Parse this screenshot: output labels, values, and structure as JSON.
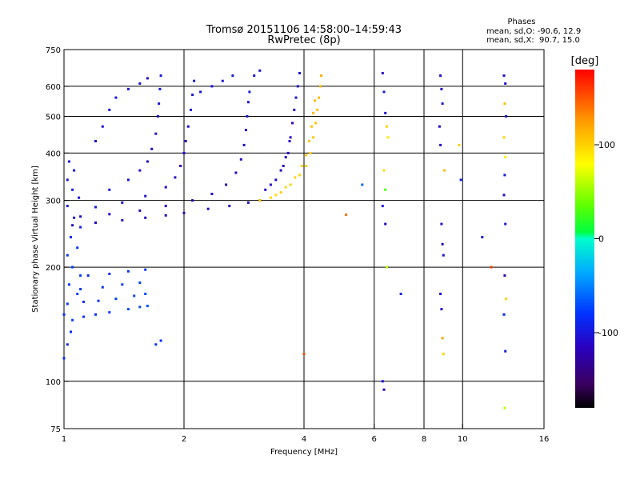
{
  "chart_data": {
    "type": "scatter",
    "title": "Tromsø 20151106 14:58:00–14:59:43",
    "subtitle": "RwPretec (8p)",
    "stats": {
      "heading": "Phases",
      "line_o": "mean, sd,O: -90.6, 12.9",
      "line_x": "mean, sd,X:  90.7, 15.0"
    },
    "xlabel": "Frequency [MHz]",
    "ylabel": "Stationary phase Virtual Height [km]",
    "xscale": "log",
    "yscale": "log",
    "xlim": [
      1,
      16
    ],
    "ylim": [
      75,
      750
    ],
    "xticks": [
      1,
      2,
      4,
      6,
      8,
      10,
      16
    ],
    "yticks": [
      75,
      100,
      200,
      300,
      400,
      500,
      600,
      750
    ],
    "grid": true,
    "colorbar": {
      "label": "[deg]",
      "min": -180,
      "max": 180,
      "ticks": [
        100,
        0,
        -100
      ]
    },
    "series": [
      {
        "points": [
          [
            1.0,
            115,
            -85
          ],
          [
            1.02,
            125,
            -90
          ],
          [
            1.04,
            135,
            -85
          ],
          [
            1.05,
            145,
            -75
          ],
          [
            1.02,
            160,
            -78
          ],
          [
            1.08,
            170,
            -72
          ],
          [
            1.03,
            180,
            -80
          ],
          [
            1.1,
            190,
            -75
          ],
          [
            1.05,
            200,
            -78
          ],
          [
            1.02,
            215,
            -82
          ],
          [
            1.08,
            225,
            -80
          ],
          [
            1.04,
            240,
            -88
          ],
          [
            1.1,
            255,
            -92
          ],
          [
            1.06,
            270,
            -95
          ],
          [
            1.02,
            290,
            -98
          ],
          [
            1.09,
            305,
            -100
          ],
          [
            1.05,
            320,
            -95
          ],
          [
            1.02,
            340,
            -100
          ],
          [
            1.06,
            360,
            -98
          ],
          [
            1.03,
            380,
            -102
          ],
          [
            1.0,
            150,
            -80
          ],
          [
            1.12,
            148,
            -78
          ],
          [
            1.2,
            150,
            -80
          ],
          [
            1.3,
            152,
            -75
          ],
          [
            1.45,
            155,
            -72
          ],
          [
            1.55,
            157,
            -70
          ],
          [
            1.62,
            158,
            -70
          ],
          [
            1.12,
            162,
            -80
          ],
          [
            1.22,
            163,
            -78
          ],
          [
            1.35,
            165,
            -75
          ],
          [
            1.5,
            168,
            -73
          ],
          [
            1.6,
            170,
            -72
          ],
          [
            1.1,
            175,
            -82
          ],
          [
            1.25,
            177,
            -80
          ],
          [
            1.4,
            180,
            -76
          ],
          [
            1.55,
            182,
            -74
          ],
          [
            1.15,
            190,
            -85
          ],
          [
            1.3,
            192,
            -82
          ],
          [
            1.45,
            195,
            -80
          ],
          [
            1.6,
            197,
            -78
          ],
          [
            1.7,
            125,
            -78
          ],
          [
            1.75,
            128,
            -80
          ]
        ]
      },
      {
        "points": [
          [
            1.05,
            258,
            -110
          ],
          [
            1.2,
            262,
            -112
          ],
          [
            1.4,
            266,
            -114
          ],
          [
            1.6,
            270,
            -115
          ],
          [
            1.8,
            274,
            -116
          ],
          [
            2.0,
            278,
            -118
          ],
          [
            2.3,
            285,
            -116
          ],
          [
            2.6,
            290,
            -112
          ],
          [
            2.9,
            296,
            -110
          ],
          [
            3.1,
            300,
            -108
          ],
          [
            1.1,
            272,
            -105
          ],
          [
            1.3,
            276,
            -108
          ],
          [
            1.55,
            282,
            -110
          ],
          [
            1.8,
            290,
            -112
          ],
          [
            2.1,
            300,
            -114
          ],
          [
            2.35,
            312,
            -113
          ],
          [
            2.55,
            330,
            -112
          ],
          [
            2.7,
            355,
            -110
          ],
          [
            2.78,
            385,
            -108
          ],
          [
            2.83,
            420,
            -106
          ],
          [
            2.86,
            460,
            -104
          ],
          [
            2.88,
            500,
            -102
          ],
          [
            2.9,
            545,
            -100
          ],
          [
            2.92,
            580,
            -98
          ],
          [
            1.2,
            288,
            -100
          ],
          [
            1.4,
            296,
            -103
          ],
          [
            1.6,
            308,
            -106
          ],
          [
            1.8,
            325,
            -108
          ],
          [
            1.9,
            345,
            -110
          ],
          [
            1.96,
            370,
            -110
          ],
          [
            2.0,
            400,
            -108
          ],
          [
            2.02,
            430,
            -106
          ],
          [
            2.05,
            470,
            -104
          ],
          [
            2.08,
            520,
            -102
          ],
          [
            2.1,
            570,
            -100
          ],
          [
            2.12,
            620,
            -98
          ],
          [
            1.3,
            320,
            -100
          ],
          [
            1.45,
            340,
            -102
          ],
          [
            1.55,
            360,
            -105
          ],
          [
            1.62,
            380,
            -106
          ],
          [
            1.66,
            410,
            -108
          ],
          [
            1.7,
            450,
            -106
          ],
          [
            1.72,
            500,
            -104
          ],
          [
            1.73,
            540,
            -102
          ],
          [
            1.74,
            590,
            -100
          ],
          [
            1.75,
            640,
            -98
          ],
          [
            1.2,
            430,
            -102
          ],
          [
            1.25,
            470,
            -104
          ],
          [
            1.3,
            520,
            -100
          ],
          [
            1.35,
            560,
            -98
          ],
          [
            1.45,
            590,
            -102
          ],
          [
            1.55,
            610,
            -104
          ],
          [
            1.62,
            630,
            -106
          ],
          [
            2.2,
            580,
            -100
          ],
          [
            2.35,
            600,
            -102
          ],
          [
            2.5,
            620,
            -100
          ],
          [
            2.65,
            640,
            -98
          ],
          [
            3.0,
            640,
            -102
          ],
          [
            3.1,
            660,
            -100
          ],
          [
            3.2,
            320,
            -108
          ],
          [
            3.4,
            340,
            -110
          ],
          [
            3.55,
            370,
            -112
          ],
          [
            3.65,
            400,
            -112
          ],
          [
            3.7,
            440,
            -110
          ],
          [
            3.74,
            480,
            -108
          ],
          [
            3.78,
            520,
            -106
          ],
          [
            3.82,
            560,
            -104
          ],
          [
            3.86,
            600,
            -102
          ],
          [
            3.9,
            650,
            -100
          ],
          [
            3.3,
            330,
            -112
          ],
          [
            3.5,
            360,
            -114
          ],
          [
            3.6,
            390,
            -112
          ],
          [
            3.68,
            430,
            -110
          ]
        ]
      },
      {
        "points": [
          [
            3.1,
            300,
            100
          ],
          [
            3.3,
            305,
            98
          ],
          [
            3.5,
            315,
            102
          ],
          [
            3.7,
            330,
            100
          ],
          [
            3.9,
            350,
            98
          ],
          [
            4.05,
            370,
            100
          ],
          [
            4.15,
            400,
            102
          ],
          [
            4.22,
            440,
            104
          ],
          [
            4.28,
            480,
            106
          ],
          [
            4.32,
            520,
            108
          ],
          [
            4.36,
            560,
            110
          ],
          [
            4.4,
            600,
            112
          ],
          [
            4.42,
            640,
            118
          ],
          [
            3.4,
            310,
            95
          ],
          [
            3.6,
            325,
            98
          ],
          [
            3.8,
            345,
            100
          ],
          [
            3.95,
            370,
            102
          ],
          [
            4.05,
            395,
            104
          ],
          [
            4.12,
            430,
            106
          ],
          [
            4.18,
            470,
            108
          ],
          [
            4.22,
            510,
            110
          ],
          [
            4.26,
            550,
            112
          ]
        ]
      },
      {
        "points": [
          [
            6.3,
            650,
            -110
          ],
          [
            6.35,
            580,
            -100
          ],
          [
            6.4,
            510,
            -105
          ],
          [
            6.45,
            470,
            100
          ],
          [
            6.5,
            440,
            90
          ],
          [
            6.35,
            360,
            95
          ],
          [
            6.4,
            320,
            30
          ],
          [
            6.3,
            290,
            -100
          ],
          [
            6.4,
            260,
            -110
          ],
          [
            6.45,
            200,
            60
          ],
          [
            6.3,
            100,
            -105
          ],
          [
            6.35,
            95,
            -120
          ],
          [
            7.0,
            170,
            -90
          ],
          [
            8.8,
            640,
            -110
          ],
          [
            8.85,
            590,
            -105
          ],
          [
            8.9,
            540,
            -100
          ],
          [
            8.75,
            470,
            -110
          ],
          [
            8.8,
            420,
            -108
          ],
          [
            9.0,
            360,
            110
          ],
          [
            8.85,
            260,
            -105
          ],
          [
            8.9,
            230,
            -110
          ],
          [
            8.95,
            215,
            -100
          ],
          [
            8.8,
            170,
            -105
          ],
          [
            8.85,
            155,
            -110
          ],
          [
            8.9,
            130,
            120
          ],
          [
            8.95,
            118,
            100
          ],
          [
            9.8,
            420,
            100
          ],
          [
            9.9,
            340,
            -90
          ],
          [
            11.2,
            240,
            -100
          ],
          [
            11.8,
            200,
            160
          ],
          [
            12.7,
            640,
            -110
          ],
          [
            12.8,
            610,
            -105
          ],
          [
            12.75,
            540,
            110
          ],
          [
            12.85,
            500,
            -100
          ],
          [
            12.7,
            440,
            100
          ],
          [
            12.8,
            390,
            90
          ],
          [
            12.75,
            350,
            -95
          ],
          [
            12.7,
            310,
            -110
          ],
          [
            12.8,
            260,
            -100
          ],
          [
            12.75,
            190,
            -120
          ],
          [
            12.85,
            165,
            100
          ],
          [
            12.7,
            150,
            -90
          ],
          [
            12.8,
            120,
            -95
          ],
          [
            12.75,
            85,
            60
          ],
          [
            5.1,
            275,
            140
          ],
          [
            4.0,
            118,
            150
          ],
          [
            5.6,
            330,
            -60
          ]
        ]
      }
    ]
  }
}
